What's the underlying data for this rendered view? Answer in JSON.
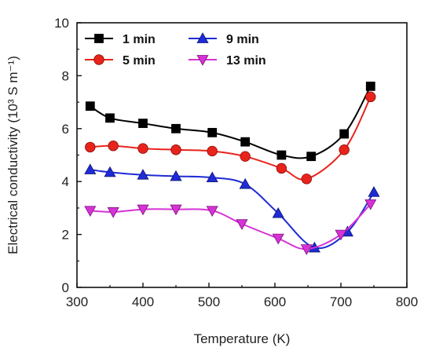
{
  "chart_data": {
    "type": "line",
    "xlabel": "Temperature (K)",
    "ylabel": "Electrical conductivity (10³ S m⁻¹)",
    "xlim": [
      300,
      800
    ],
    "ylim": [
      0,
      10
    ],
    "xticks": [
      300,
      400,
      500,
      600,
      700,
      800
    ],
    "yticks": [
      0,
      2,
      4,
      6,
      8,
      10
    ],
    "legend_position": "top-left",
    "series": [
      {
        "name": "1 min",
        "color": "#000000",
        "marker": "square",
        "x": [
          320,
          350,
          400,
          450,
          505,
          555,
          610,
          655,
          705,
          745
        ],
        "y": [
          6.85,
          6.4,
          6.2,
          6.0,
          5.85,
          5.5,
          5.0,
          4.95,
          5.8,
          7.6
        ]
      },
      {
        "name": "5 min",
        "color": "#e8231c",
        "marker": "circle",
        "x": [
          320,
          355,
          400,
          450,
          505,
          555,
          610,
          648,
          705,
          745
        ],
        "y": [
          5.3,
          5.35,
          5.25,
          5.2,
          5.15,
          4.95,
          4.5,
          4.1,
          5.2,
          7.2
        ]
      },
      {
        "name": "9 min",
        "color": "#1f2bd6",
        "marker": "triangle-up",
        "x": [
          320,
          350,
          400,
          450,
          505,
          555,
          605,
          660,
          710,
          750
        ],
        "y": [
          4.45,
          4.35,
          4.25,
          4.2,
          4.15,
          3.9,
          2.8,
          1.5,
          2.1,
          3.6
        ]
      },
      {
        "name": "13 min",
        "color": "#d632d6",
        "marker": "triangle-down",
        "x": [
          320,
          355,
          400,
          450,
          505,
          550,
          605,
          648,
          700,
          745
        ],
        "y": [
          2.9,
          2.85,
          2.95,
          2.95,
          2.9,
          2.4,
          1.85,
          1.45,
          2.0,
          3.15
        ]
      }
    ]
  }
}
